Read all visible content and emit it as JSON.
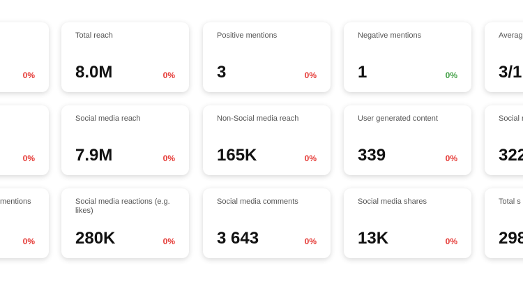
{
  "cards": [
    [
      {
        "change": "0%",
        "change_color": "#e53935"
      },
      {
        "label": "Total reach",
        "value": "8.0M",
        "change": "0%",
        "change_color": "#e53935"
      },
      {
        "label": "Positive mentions",
        "value": "3",
        "change": "0%",
        "change_color": "#e53935"
      },
      {
        "label": "Negative mentions",
        "value": "1",
        "change": "0%",
        "change_color": "#43a047"
      },
      {
        "label": "Averag",
        "value": "3/1"
      }
    ],
    [
      {
        "change": "0%",
        "change_color": "#e53935"
      },
      {
        "label": "Social media reach",
        "value": "7.9M",
        "change": "0%",
        "change_color": "#e53935"
      },
      {
        "label": "Non-Social media reach",
        "value": "165K",
        "change": "0%",
        "change_color": "#e53935"
      },
      {
        "label": "User generated content",
        "value": "339",
        "change": "0%",
        "change_color": "#e53935"
      },
      {
        "label": "Social r",
        "value": "322"
      }
    ],
    [
      {
        "label": "mentions",
        "change": "0%",
        "change_color": "#e53935"
      },
      {
        "label": "Social media reactions (e.g. likes)",
        "value": "280K",
        "change": "0%",
        "change_color": "#e53935"
      },
      {
        "label": "Social media comments",
        "value": "3 643",
        "change": "0%",
        "change_color": "#e53935"
      },
      {
        "label": "Social media shares",
        "value": "13K",
        "change": "0%",
        "change_color": "#e53935"
      },
      {
        "label": "Total s interact",
        "value": "298"
      }
    ]
  ]
}
